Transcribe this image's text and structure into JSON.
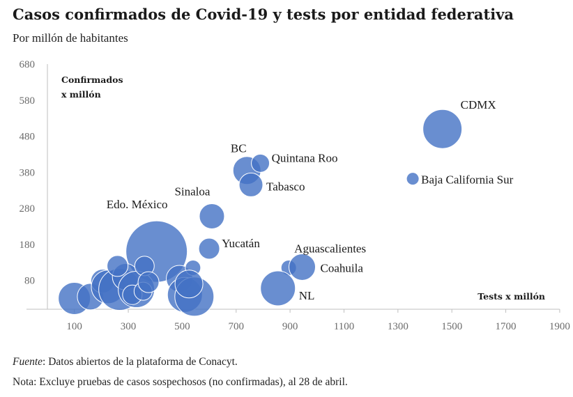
{
  "header": {
    "title": "Casos confirmados de Covid-19 y tests por entidad federativa",
    "subtitle": "Por millón de habitantes"
  },
  "footer": {
    "source_label": "Fuente",
    "source_text": ": Datos abiertos de la plataforma de Conacyt.",
    "note": "Nota: Excluye pruebas de casos sospechosos (no confirmadas), al 28 de abril."
  },
  "chart_data": {
    "type": "scatter",
    "xlabel": "Tests x millón",
    "ylabel_line1": "Confirmados",
    "ylabel_line2": "x millón",
    "xlim": [
      0,
      1900
    ],
    "ylim": [
      0,
      680
    ],
    "x_ticks": [
      100,
      300,
      500,
      700,
      900,
      1100,
      1300,
      1500,
      1700,
      1900
    ],
    "y_ticks": [
      80,
      180,
      280,
      380,
      480,
      580,
      680
    ],
    "bubble_color": "#4472C4",
    "grid": false,
    "points": [
      {
        "label": "CDMX",
        "x": 1465,
        "y": 500,
        "size": 28
      },
      {
        "label": "Baja California Sur",
        "x": 1355,
        "y": 362,
        "size": 9
      },
      {
        "label": "BC",
        "x": 740,
        "y": 385,
        "size": 20
      },
      {
        "label": "Quintana Roo",
        "x": 790,
        "y": 405,
        "size": 13
      },
      {
        "label": "Tabasco",
        "x": 755,
        "y": 345,
        "size": 17
      },
      {
        "label": "Sinaloa",
        "x": 610,
        "y": 258,
        "size": 18
      },
      {
        "label": "Edo. México",
        "x": 405,
        "y": 160,
        "size": 44
      },
      {
        "label": "Yucatán",
        "x": 600,
        "y": 168,
        "size": 15
      },
      {
        "label": "Aguascalientes",
        "x": 895,
        "y": 115,
        "size": 11
      },
      {
        "label": "Coahuila",
        "x": 945,
        "y": 117,
        "size": 19
      },
      {
        "label": "NL",
        "x": 855,
        "y": 58,
        "size": 25
      },
      {
        "label": "",
        "x": 100,
        "y": 30,
        "size": 23
      },
      {
        "label": "",
        "x": 160,
        "y": 35,
        "size": 19
      },
      {
        "label": "",
        "x": 205,
        "y": 78,
        "size": 17
      },
      {
        "label": "",
        "x": 225,
        "y": 62,
        "size": 24
      },
      {
        "label": "",
        "x": 268,
        "y": 55,
        "size": 30
      },
      {
        "label": "",
        "x": 290,
        "y": 90,
        "size": 19
      },
      {
        "label": "",
        "x": 330,
        "y": 55,
        "size": 26
      },
      {
        "label": "",
        "x": 315,
        "y": 40,
        "size": 14
      },
      {
        "label": "",
        "x": 355,
        "y": 50,
        "size": 13
      },
      {
        "label": "",
        "x": 360,
        "y": 120,
        "size": 14
      },
      {
        "label": "",
        "x": 375,
        "y": 75,
        "size": 15
      },
      {
        "label": "",
        "x": 490,
        "y": 85,
        "size": 19
      },
      {
        "label": "",
        "x": 510,
        "y": 40,
        "size": 25
      },
      {
        "label": "",
        "x": 540,
        "y": 115,
        "size": 11
      },
      {
        "label": "",
        "x": 545,
        "y": 35,
        "size": 28
      },
      {
        "label": "",
        "x": 525,
        "y": 70,
        "size": 20
      },
      {
        "label": "",
        "x": 260,
        "y": 120,
        "size": 15
      }
    ]
  }
}
